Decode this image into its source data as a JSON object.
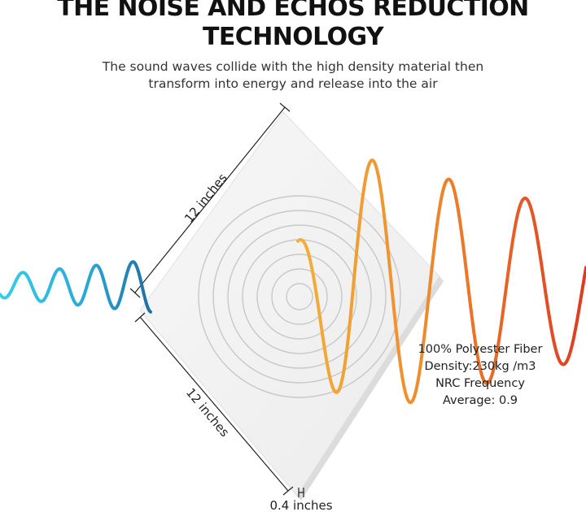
{
  "heading": {
    "line1": "THE NOISE AND ECHOS REDUCTION",
    "line2": "TECHNOLOGY"
  },
  "subtitle": {
    "line1": "The sound waves collide with the high density material then",
    "line2": "transform into energy and release into the air"
  },
  "dimensions": {
    "top_edge": "12 inches",
    "bottom_edge": "12 inches",
    "thickness": "0.4 inches"
  },
  "specs": {
    "line1": "100% Polyester Fiber",
    "line2": "Density:230kg /m3",
    "line3": "NRC Frequency",
    "line4": "Average: 0.9"
  },
  "colors": {
    "incoming_wave_start": "#35d0e8",
    "incoming_wave_end": "#1f6fa6",
    "outgoing_wave_start": "#f2b03a",
    "outgoing_wave_end": "#dd3b22",
    "panel": "#f4f4f4",
    "rings": "#c8c8c8"
  }
}
